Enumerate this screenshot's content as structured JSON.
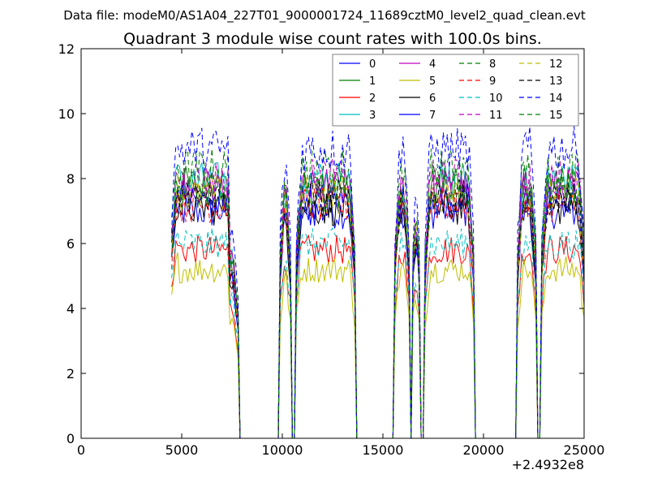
{
  "figure": {
    "suptitle": "Data file: modeM0/AS1A04_227T01_9000001724_11689cztM0_level2_quad_clean.evt"
  },
  "chart_data": {
    "type": "line",
    "title": "Quadrant 3 module wise count rates with 100.0s bins.",
    "xlabel": "",
    "ylabel": "",
    "x_offset_label": "+2.4932e8",
    "xlim": [
      0,
      25000
    ],
    "ylim": [
      0,
      12
    ],
    "xticks": [
      0,
      5000,
      10000,
      15000,
      20000,
      25000
    ],
    "yticks": [
      0,
      2,
      4,
      6,
      8,
      10,
      12
    ],
    "grid": false,
    "legend_placement": "top-right",
    "legend_columns": 4,
    "bin_seconds": 100,
    "good_time_intervals": [
      [
        4500,
        7800
      ],
      [
        9900,
        10400
      ],
      [
        10700,
        13600
      ],
      [
        15600,
        16300
      ],
      [
        16500,
        16800
      ],
      [
        17100,
        19500
      ],
      [
        21700,
        22600
      ],
      [
        22900,
        25000
      ]
    ],
    "series": [
      {
        "name": "0",
        "color": "#0000ff",
        "dashed": false,
        "level": 7.0
      },
      {
        "name": "1",
        "color": "#008000",
        "dashed": false,
        "level": 7.8
      },
      {
        "name": "2",
        "color": "#ff0000",
        "dashed": false,
        "level": 5.8
      },
      {
        "name": "3",
        "color": "#00bfbf",
        "dashed": false,
        "level": 7.9
      },
      {
        "name": "4",
        "color": "#bf00bf",
        "dashed": false,
        "level": 7.7
      },
      {
        "name": "5",
        "color": "#bfbf00",
        "dashed": false,
        "level": 5.2
      },
      {
        "name": "6",
        "color": "#000000",
        "dashed": false,
        "level": 7.1
      },
      {
        "name": "7",
        "color": "#0000ff",
        "dashed": false,
        "level": 7.3
      },
      {
        "name": "8",
        "color": "#008000",
        "dashed": true,
        "level": 8.3
      },
      {
        "name": "9",
        "color": "#ff0000",
        "dashed": true,
        "level": 7.2
      },
      {
        "name": "10",
        "color": "#00bfbf",
        "dashed": true,
        "level": 6.0
      },
      {
        "name": "11",
        "color": "#bf00bf",
        "dashed": true,
        "level": 8.0
      },
      {
        "name": "12",
        "color": "#bfbf00",
        "dashed": true,
        "level": 7.5
      },
      {
        "name": "13",
        "color": "#000000",
        "dashed": true,
        "level": 7.4
      },
      {
        "name": "14",
        "color": "#0000ff",
        "dashed": true,
        "level": 8.9
      },
      {
        "name": "15",
        "color": "#008000",
        "dashed": true,
        "level": 7.6
      }
    ]
  }
}
